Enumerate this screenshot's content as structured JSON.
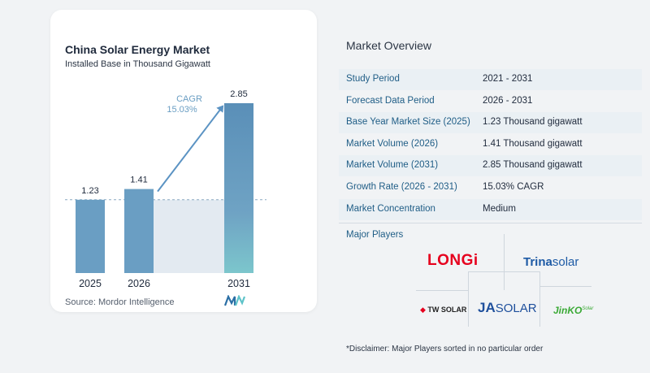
{
  "chart": {
    "title": "China Solar Energy Market",
    "subtitle": "Installed Base in Thousand Gigawatt",
    "source": "Source:  Mordor Intelligence",
    "cagr_label": "CAGR",
    "cagr_value": "15.03%",
    "colors": {
      "bar": "#6a9ec3",
      "bar_top": "#4f87b2",
      "bar_teal_bottom": "#7cc6cc",
      "forecast_fill": "#e3eaf1",
      "arrow": "#5b93c3"
    }
  },
  "chart_data": {
    "type": "bar",
    "title": "China Solar Energy Market",
    "subtitle": "Installed Base in Thousand Gigawatt",
    "categories": [
      "2025",
      "2026",
      "2031"
    ],
    "values": [
      1.23,
      1.41,
      2.85
    ],
    "value_labels": [
      "1.23",
      "1.41",
      "2.85"
    ],
    "xlabel": "",
    "ylabel": "",
    "ylim": [
      0,
      2.85
    ],
    "grid": false,
    "annotation": {
      "text": "CAGR",
      "value": "15.03%"
    }
  },
  "overview": {
    "title": "Market Overview",
    "rows": [
      {
        "label": "Study Period",
        "value": "2021 - 2031"
      },
      {
        "label": "Forecast Data Period",
        "value": "2026 - 2031"
      },
      {
        "label": "Base Year Market Size (2025)",
        "value": "1.23 Thousand gigawatt"
      },
      {
        "label": "Market Volume (2026)",
        "value": "1.41 Thousand gigawatt"
      },
      {
        "label": "Market Volume (2031)",
        "value": "2.85 Thousand gigawatt"
      },
      {
        "label": "Growth Rate (2026 - 2031)",
        "value": "15.03% CAGR"
      },
      {
        "label": "Market Concentration",
        "value": "Medium"
      }
    ]
  },
  "players": {
    "title": "Major Players",
    "logos": {
      "longi": "LONGi",
      "trina_a": "Trina",
      "trina_b": "solar",
      "tw": "TW SOLAR",
      "ja_a": "JA",
      "ja_b": "SOLAR",
      "jinko": "JinKO",
      "jinko_sup": "Solar"
    },
    "colors": {
      "longi": "#e6001e",
      "trina": "#1d5aa5",
      "tw": "#222222",
      "ja": "#1e4f9c",
      "jinko": "#3aa935"
    }
  },
  "disclaimer": "*Disclaimer: Major Players sorted in no particular order"
}
